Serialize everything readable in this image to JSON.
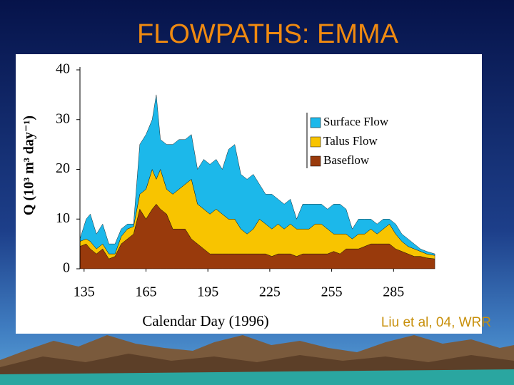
{
  "chart_data": {
    "type": "area",
    "stacked": true,
    "title": "FLOWPATHS: EMMA",
    "x_label": "Calendar Day (1996)",
    "y_label": "Q (10³ m³ day⁻¹)",
    "x": [
      133,
      136,
      138,
      141,
      144,
      147,
      150,
      153,
      156,
      159,
      162,
      165,
      168,
      170,
      172,
      175,
      178,
      181,
      184,
      187,
      190,
      193,
      196,
      199,
      202,
      205,
      208,
      211,
      214,
      217,
      220,
      223,
      226,
      229,
      232,
      235,
      238,
      241,
      244,
      247,
      250,
      253,
      256,
      259,
      262,
      265,
      268,
      271,
      274,
      277,
      280,
      283,
      286,
      289,
      292,
      295,
      298,
      301,
      305
    ],
    "series": [
      {
        "name": "Surface Flow",
        "color": "#1cb8ea",
        "values": [
          0.5,
          4,
          5.5,
          3,
          4,
          2,
          2,
          1.5,
          1,
          0.5,
          10,
          11,
          10,
          17,
          6,
          9,
          10,
          10,
          9,
          9,
          7,
          10,
          10,
          10,
          9,
          14,
          15,
          11,
          11,
          11,
          7,
          6,
          7,
          5,
          5,
          5,
          2,
          5,
          5,
          4,
          4,
          4,
          6,
          6,
          5,
          2,
          3,
          3,
          2,
          2,
          2,
          1,
          2,
          1.5,
          1.5,
          1,
          0.5,
          0.5,
          0.3
        ]
      },
      {
        "name": "Talus Flow",
        "color": "#f8c400",
        "values": [
          1,
          1,
          1.5,
          1,
          1,
          1,
          0.5,
          1.5,
          2,
          1.5,
          3,
          6,
          8,
          5,
          8,
          5,
          7,
          8,
          9,
          12,
          8,
          8,
          8,
          9,
          8,
          7,
          7,
          5,
          4,
          5,
          7,
          6,
          5.5,
          6,
          5,
          6,
          5.5,
          5,
          5,
          6,
          6,
          5,
          3.5,
          4,
          3,
          2,
          3,
          2.5,
          3,
          2,
          3,
          4,
          3,
          2,
          1.5,
          1.5,
          1,
          0.8,
          0.7
        ]
      },
      {
        "name": "Baseflow",
        "color": "#993a0c",
        "values": [
          4.5,
          5,
          4,
          3,
          4,
          2,
          2.5,
          5,
          6,
          7,
          12,
          10,
          12,
          13,
          12,
          11,
          8,
          8,
          8,
          6,
          5,
          4,
          3,
          3,
          3,
          3,
          3,
          3,
          3,
          3,
          3,
          3,
          2.5,
          3,
          3,
          3,
          2.5,
          3,
          3,
          3,
          3,
          3,
          3.5,
          3,
          4,
          4,
          4,
          4.5,
          5,
          5,
          5,
          5,
          4,
          3.5,
          3,
          2.5,
          2.5,
          2.2,
          2
        ]
      }
    ],
    "xlim": [
      133,
      306
    ],
    "ylim": [
      0,
      40
    ],
    "xticks": [
      135,
      165,
      195,
      225,
      255,
      285
    ],
    "yticks": [
      0,
      10,
      20,
      30,
      40
    ],
    "legend": "upper right"
  },
  "citation": "Liu et al, 04, WRR"
}
